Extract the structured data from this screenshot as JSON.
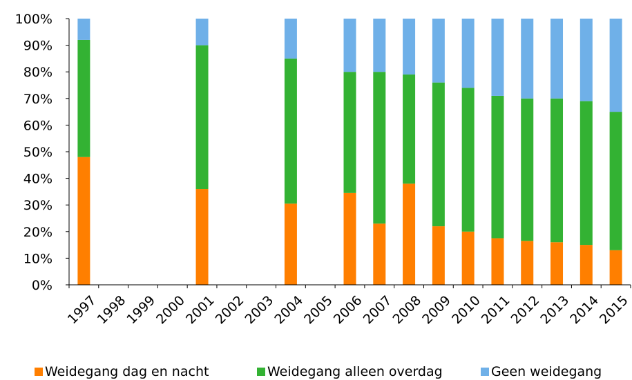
{
  "chart_data": {
    "type": "bar",
    "stacked": true,
    "categories": [
      "1997",
      "1998",
      "1999",
      "2000",
      "2001",
      "2002",
      "2003",
      "2004",
      "2005",
      "2006",
      "2007",
      "2008",
      "2009",
      "2010",
      "2011",
      "2012",
      "2013",
      "2014",
      "2015"
    ],
    "series": [
      {
        "name": "Weidegang dag en nacht",
        "color": "#ff7f00",
        "values": [
          48,
          null,
          null,
          null,
          36,
          null,
          null,
          30.5,
          null,
          34.5,
          23,
          38,
          22,
          20,
          17.5,
          16.5,
          16,
          15,
          13
        ]
      },
      {
        "name": "Weidegang alleen overdag",
        "color": "#33b233",
        "values": [
          44,
          null,
          null,
          null,
          54,
          null,
          null,
          54.5,
          null,
          45.5,
          57,
          41,
          54,
          54,
          53.5,
          53.5,
          54,
          54,
          52
        ]
      },
      {
        "name": "Geen weidegang",
        "color": "#6fb0e8",
        "values": [
          8,
          null,
          null,
          null,
          10,
          null,
          null,
          15,
          null,
          20,
          20,
          21,
          24,
          26,
          29,
          30,
          30,
          31,
          35
        ]
      }
    ],
    "ylim": [
      0,
      100
    ],
    "yticks": [
      "0%",
      "10%",
      "20%",
      "30%",
      "40%",
      "50%",
      "60%",
      "70%",
      "80%",
      "90%",
      "100%"
    ],
    "grid": false,
    "legend_position": "bottom"
  }
}
